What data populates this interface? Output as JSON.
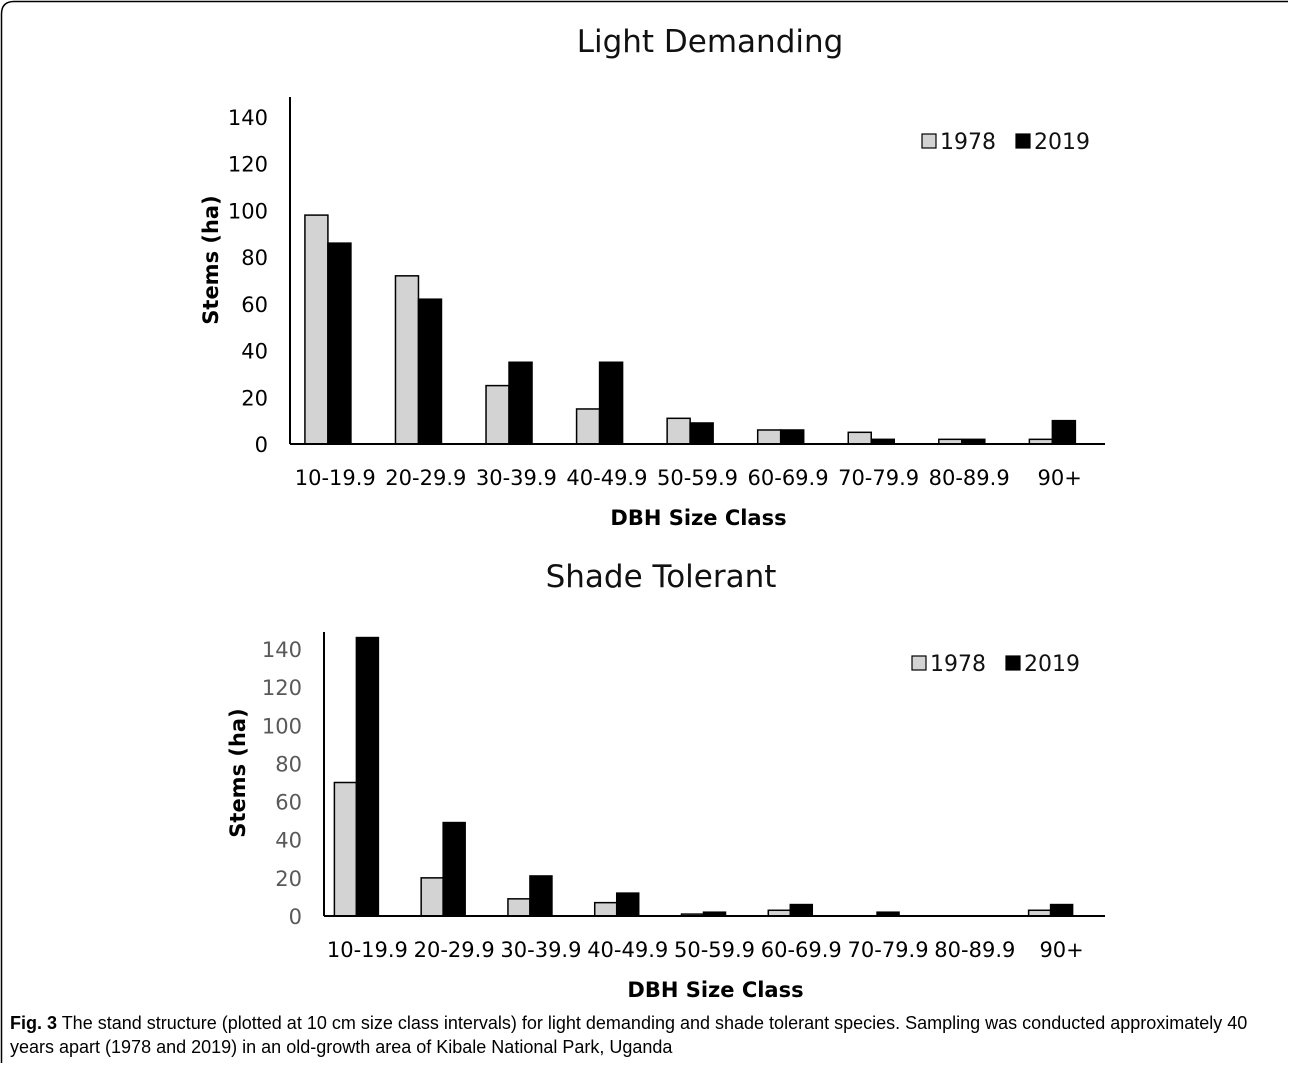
{
  "caption": {
    "lead": "Fig. 3",
    "text": " The stand structure (plotted at 10 cm size class intervals) for light demanding and shade tolerant species. Sampling was conducted approximately 40 years apart (1978 and 2019) in an old-growth area of Kibale National Park, Uganda"
  },
  "colors": {
    "s1978": "#d3d3d3",
    "s2019": "#000000",
    "axis": "#000000"
  },
  "chart_data": [
    {
      "type": "bar",
      "title": "Light Demanding",
      "xlabel": "DBH Size Class",
      "ylabel": "Stems  (ha)",
      "ylim": [
        0,
        140
      ],
      "yticks": [
        "0",
        "20",
        "40",
        "60",
        "80",
        "100",
        "120",
        "140"
      ],
      "categories": [
        "10-19.9",
        "20-29.9",
        "30-39.9",
        "40-49.9",
        "50-59.9",
        "60-69.9",
        "70-79.9",
        "80-89.9",
        "90+"
      ],
      "series": [
        {
          "name": "1978",
          "values": [
            98,
            72,
            25,
            15,
            11,
            6,
            5,
            2,
            2
          ]
        },
        {
          "name": "2019",
          "values": [
            86,
            62,
            35,
            35,
            9,
            6,
            2,
            2,
            10
          ]
        }
      ],
      "legend_position": "top-right",
      "grid": false
    },
    {
      "type": "bar",
      "title": "Shade Tolerant",
      "xlabel": "DBH Size Class",
      "ylabel": "Stems (ha)",
      "ylim": [
        0,
        140
      ],
      "yticks": [
        "0",
        "20",
        "40",
        "60",
        "80",
        "100",
        "120",
        "140"
      ],
      "categories": [
        "10-19.9",
        "20-29.9",
        "30-39.9",
        "40-49.9",
        "50-59.9",
        "60-69.9",
        "70-79.9",
        "80-89.9",
        "90+"
      ],
      "series": [
        {
          "name": "1978",
          "values": [
            70,
            20,
            9,
            7,
            1,
            3,
            0,
            0,
            3
          ]
        },
        {
          "name": "2019",
          "values": [
            146,
            49,
            21,
            12,
            2,
            6,
            2,
            0,
            6
          ]
        }
      ],
      "legend_position": "top-right",
      "grid": false
    }
  ]
}
